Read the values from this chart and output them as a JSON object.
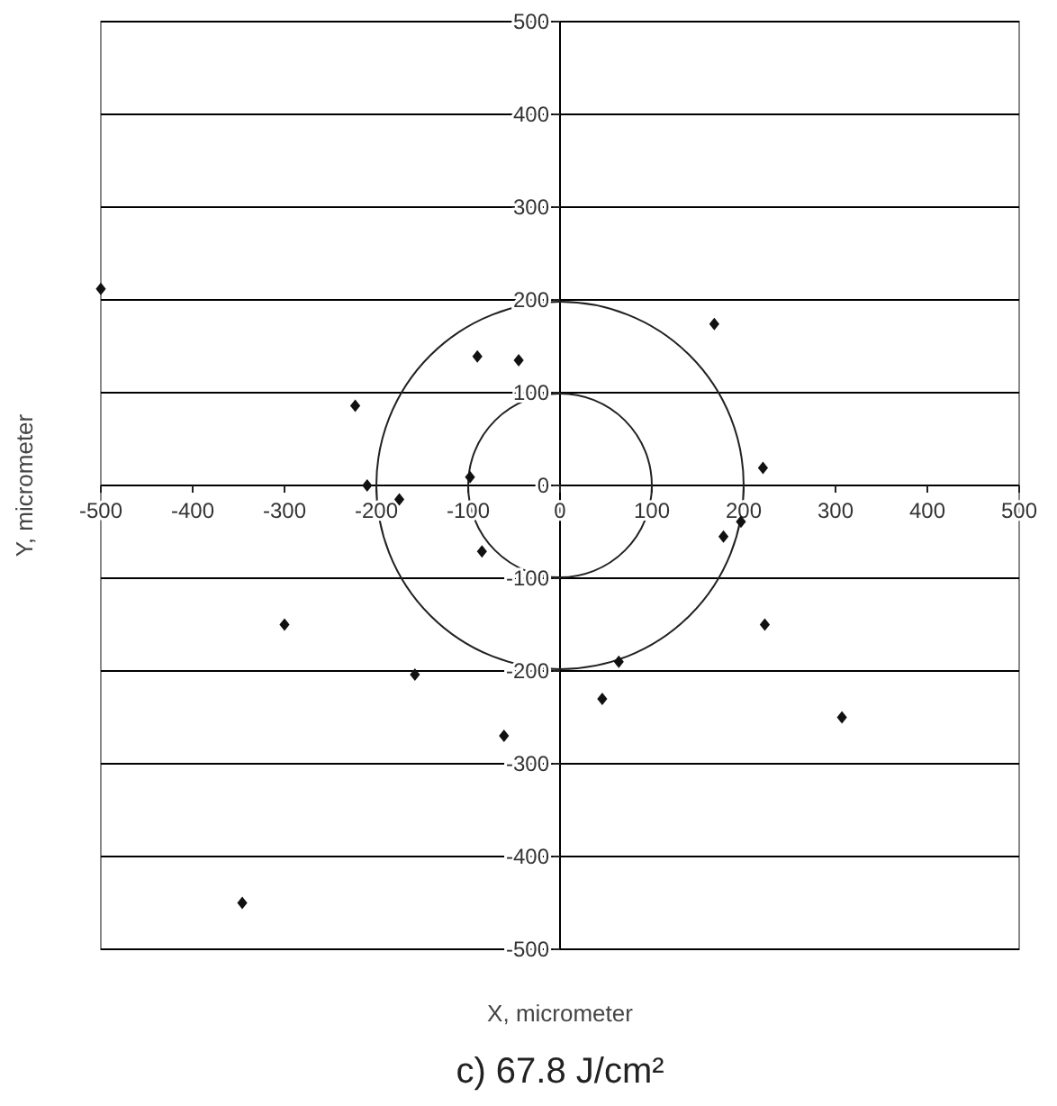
{
  "chart_data": {
    "type": "scatter",
    "title": "c) 67.8 J/cm²",
    "xlabel": "X, micrometer",
    "ylabel": "Y, micrometer",
    "xlim": [
      -500,
      500
    ],
    "ylim": [
      -500,
      500
    ],
    "xticks": [
      -500,
      -400,
      -300,
      -200,
      -100,
      0,
      100,
      200,
      300,
      400,
      500
    ],
    "yticks": [
      -500,
      -400,
      -300,
      -200,
      -100,
      0,
      100,
      200,
      300,
      400,
      500
    ],
    "grid": "y",
    "marker": "diamond",
    "series": [
      {
        "color": "#111111",
        "x": [
          -500,
          168,
          -90,
          -45,
          -223,
          221,
          -210,
          -175,
          -98,
          197,
          178,
          -85,
          -300,
          223,
          -158,
          64,
          46,
          -61,
          307,
          -346
        ],
        "values": [
          212,
          174,
          139,
          135,
          86,
          19,
          0,
          -15,
          9,
          -39,
          -55,
          -71,
          -150,
          -150,
          -204,
          -190,
          -230,
          -270,
          -250,
          -450
        ]
      }
    ]
  }
}
